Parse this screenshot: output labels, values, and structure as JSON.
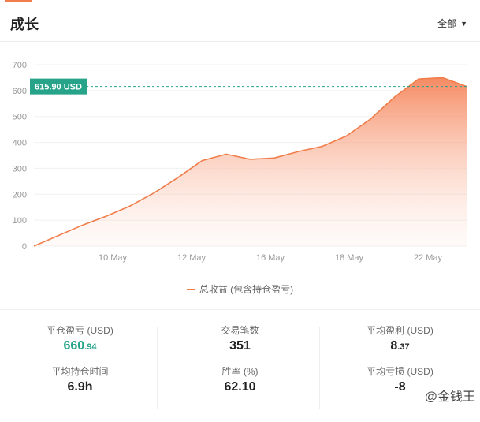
{
  "header": {
    "title": "成长",
    "filter_label": "全部"
  },
  "chart_data": {
    "type": "area",
    "ylim": [
      0,
      700
    ],
    "y_ticks": [
      "0",
      "100",
      "200",
      "300",
      "400",
      "500",
      "600",
      "700"
    ],
    "x_tick_labels": [
      "10 May",
      "12 May",
      "16 May",
      "18 May",
      "22 May"
    ],
    "series": [
      {
        "name": "总收益 (包含持仓盈亏)",
        "values": [
          0,
          40,
          80,
          115,
          155,
          205,
          265,
          330,
          355,
          335,
          340,
          365,
          385,
          425,
          490,
          575,
          645,
          650,
          615.9
        ]
      }
    ],
    "current_value_label": "615.90 USD",
    "line_color": "#f07d4a",
    "marker_color": "#27a38a"
  },
  "legend": {
    "label": "总收益 (包含持仓盈亏)"
  },
  "stats": {
    "closed_pl": {
      "label": "平仓盈亏 (USD)",
      "int": "660",
      "dec": ".94"
    },
    "trades": {
      "label": "交易笔数",
      "value": "351"
    },
    "avg_profit": {
      "label": "平均盈利 (USD)",
      "int": "8",
      "dec": ".37"
    },
    "avg_hold": {
      "label": "平均持仓时间",
      "value": "6.9h"
    },
    "win_rate": {
      "label": "胜率 (%)",
      "value": "62.10"
    },
    "avg_loss": {
      "label": "平均亏损 (USD)",
      "value": "-8"
    }
  },
  "watermark": "金钱王",
  "watermark_prefix": "@"
}
